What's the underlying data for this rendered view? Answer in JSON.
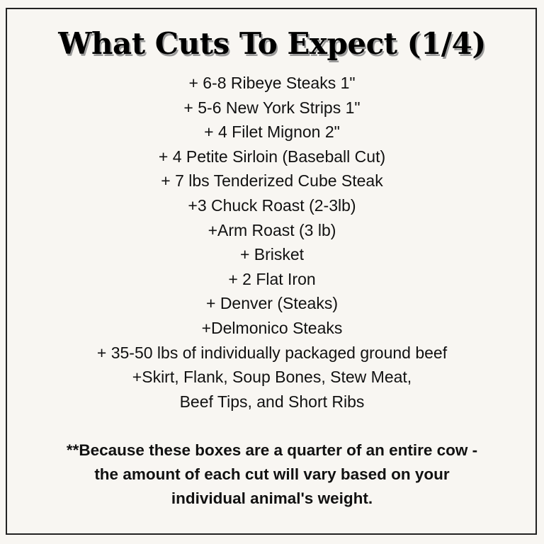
{
  "title": "What Cuts To Expect (1/4)",
  "items": [
    "+ 6-8 Ribeye Steaks 1\"",
    "+ 5-6 New York Strips 1\"",
    "+ 4 Filet Mignon 2\"",
    "+ 4 Petite Sirloin (Baseball Cut)",
    "+ 7 lbs Tenderized Cube Steak",
    "+3 Chuck Roast (2-3lb)",
    "+Arm Roast (3 lb)",
    "+ Brisket",
    "+ 2 Flat Iron",
    "+ Denver (Steaks)",
    "+Delmonico Steaks",
    "+ 35-50 lbs of individually packaged ground beef",
    "+Skirt, Flank, Soup Bones, Stew Meat,",
    "Beef Tips, and Short Ribs"
  ],
  "note_lines": [
    "**Because these boxes are a quarter of an entire cow -",
    "the amount of each cut will vary based on your",
    "individual animal's weight."
  ]
}
